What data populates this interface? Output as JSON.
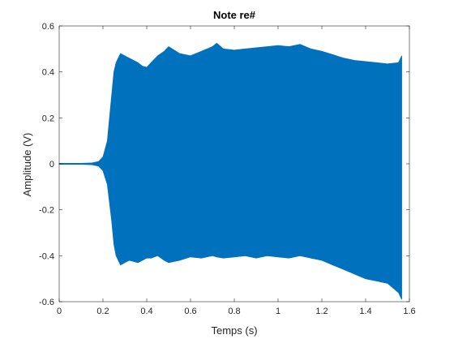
{
  "chart_data": {
    "type": "area",
    "title": "Note re#",
    "xlabel": "Temps (s)",
    "ylabel": "Amplitude (V)",
    "xlim": [
      0,
      1.6
    ],
    "ylim": [
      -0.6,
      0.6
    ],
    "xticks": [
      0,
      0.2,
      0.4,
      0.6,
      0.8,
      1.0,
      1.2,
      1.4,
      1.6
    ],
    "xtick_labels": [
      "0",
      "0.2",
      "0.4",
      "0.6",
      "0.8",
      "1",
      "1.2",
      "1.4",
      "1.6"
    ],
    "yticks": [
      -0.6,
      -0.4,
      -0.2,
      0,
      0.2,
      0.4,
      0.6
    ],
    "ytick_labels": [
      "-0.6",
      "-0.4",
      "-0.2",
      "0",
      "0.2",
      "0.4",
      "0.6"
    ],
    "grid": false,
    "color": "#0072BD",
    "series": [
      {
        "x": [
          0,
          0.1,
          0.15,
          0.18,
          0.2,
          0.22,
          0.24,
          0.25,
          0.26,
          0.28,
          0.3,
          0.32,
          0.34,
          0.36,
          0.38,
          0.4,
          0.42,
          0.45,
          0.48,
          0.5,
          0.55,
          0.6,
          0.65,
          0.7,
          0.72,
          0.75,
          0.8,
          0.85,
          0.9,
          0.95,
          1.0,
          1.05,
          1.1,
          1.15,
          1.2,
          1.25,
          1.3,
          1.35,
          1.4,
          1.45,
          1.5,
          1.55,
          1.565
        ],
        "upper": [
          0.002,
          0.002,
          0.004,
          0.01,
          0.03,
          0.1,
          0.3,
          0.4,
          0.44,
          0.48,
          0.47,
          0.46,
          0.45,
          0.44,
          0.425,
          0.42,
          0.44,
          0.47,
          0.49,
          0.51,
          0.48,
          0.47,
          0.49,
          0.51,
          0.525,
          0.5,
          0.495,
          0.5,
          0.505,
          0.51,
          0.515,
          0.51,
          0.52,
          0.5,
          0.49,
          0.475,
          0.46,
          0.45,
          0.445,
          0.44,
          0.435,
          0.44,
          0.47
        ],
        "lower": [
          -0.002,
          -0.002,
          -0.004,
          -0.01,
          -0.03,
          -0.09,
          -0.25,
          -0.35,
          -0.4,
          -0.44,
          -0.43,
          -0.42,
          -0.425,
          -0.43,
          -0.42,
          -0.41,
          -0.41,
          -0.4,
          -0.42,
          -0.43,
          -0.42,
          -0.405,
          -0.41,
          -0.4,
          -0.405,
          -0.41,
          -0.405,
          -0.4,
          -0.41,
          -0.4,
          -0.405,
          -0.41,
          -0.4,
          -0.41,
          -0.42,
          -0.44,
          -0.46,
          -0.48,
          -0.5,
          -0.51,
          -0.52,
          -0.56,
          -0.59
        ]
      }
    ]
  }
}
